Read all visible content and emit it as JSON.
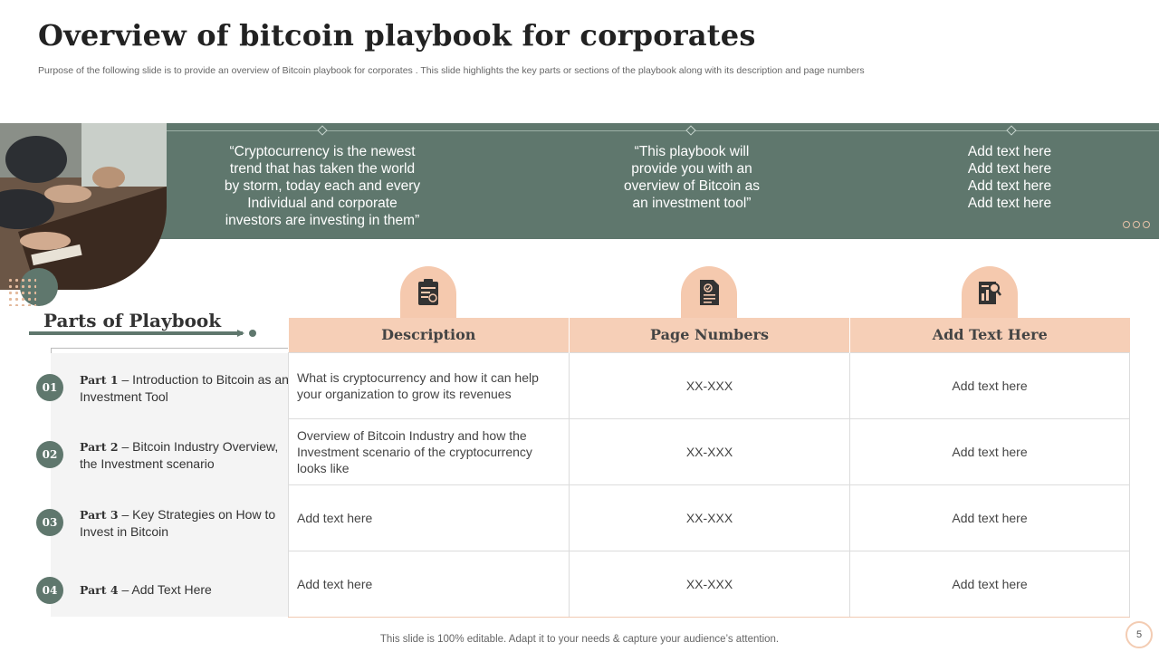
{
  "header": {
    "title": "Overview of  bitcoin playbook for corporates",
    "subtitle": "Purpose of the following slide is to provide an overview  of Bitcoin playbook for corporates . This slide highlights the key parts or sections of the playbook along with its description and page numbers"
  },
  "banner": {
    "quotes": [
      [
        "“Cryptocurrency  is the newest",
        "trend that has taken the world",
        "by storm, today each and every",
        "Individual  and corporate",
        "investors are investing in them”"
      ],
      [
        "“This playbook will",
        "provide you with an",
        "overview of Bitcoin as",
        "an investment  tool”"
      ],
      [
        "Add text here",
        "Add text here",
        "Add text here",
        "Add text here"
      ]
    ]
  },
  "parts": {
    "heading": "Parts of  Playbook",
    "items": [
      {
        "num": "01",
        "bold": "Part 1",
        "text": " – Introduction to Bitcoin as an Investment Tool"
      },
      {
        "num": "02",
        "bold": "Part 2",
        "text": " – Bitcoin Industry Overview, the Investment scenario"
      },
      {
        "num": "03",
        "bold": "Part 3",
        "text": " – Key Strategies on How to Invest in Bitcoin"
      },
      {
        "num": "04",
        "bold": "Part 4",
        "text": " – Add Text Here"
      }
    ]
  },
  "table": {
    "headers": [
      "Description",
      "Page Numbers",
      "Add Text Here"
    ],
    "rows": [
      [
        "What is cryptocurrency and how it can help your organization to grow its revenues",
        "XX-XXX",
        "Add text here"
      ],
      [
        "Overview of Bitcoin Industry and how the Investment scenario of the cryptocurrency looks like",
        "XX-XXX",
        "Add text here"
      ],
      [
        "Add text here",
        "XX-XXX",
        "Add text here"
      ],
      [
        "Add text here",
        "XX-XXX",
        "Add text here"
      ]
    ]
  },
  "icons": [
    "clipboard-chart-icon",
    "document-check-icon",
    "report-magnifier-icon"
  ],
  "colors": {
    "teal": "#5f776d",
    "peach": "#f6cfb7",
    "peach_dark": "#f5c9ae"
  },
  "footer": {
    "note": "This slide is 100% editable. Adapt it to your needs & capture your audience’s attention.",
    "page_number": "5"
  }
}
